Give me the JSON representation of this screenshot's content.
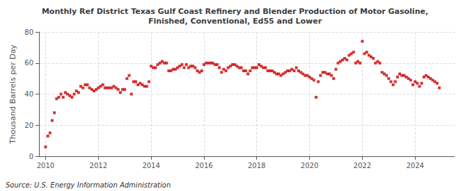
{
  "chart_data": {
    "type": "scatter",
    "title": "Monthly Ref District Texas Gulf Coast Refinery and Blender Production of Motor Gasoline,\nFinished, Conventional, Ed55 and Lower",
    "ylabel": "Thousand Barrels per Day",
    "annotations": [
      "Source: U.S. Energy Information Administration"
    ],
    "color": "#cc0000",
    "marker": "square",
    "grid": true,
    "xlim": [
      2009.75,
      2025.5
    ],
    "xticks": [
      2010,
      2012,
      2014,
      2016,
      2018,
      2020,
      2022,
      2024
    ],
    "ylim": [
      0,
      80
    ],
    "yticks": [
      0,
      20,
      40,
      60,
      80
    ],
    "x": [
      2010,
      2010.0833333333333,
      2010.1666666666667,
      2010.25,
      2010.3333333333333,
      2010.4166666666667,
      2010.5,
      2010.5833333333333,
      2010.6666666666667,
      2010.75,
      2010.8333333333333,
      2010.9166666666667,
      2011,
      2011.0833333333333,
      2011.1666666666667,
      2011.25,
      2011.3333333333333,
      2011.4166666666667,
      2011.5,
      2011.5833333333333,
      2011.6666666666667,
      2011.75,
      2011.8333333333333,
      2011.9166666666667,
      2012,
      2012.0833333333333,
      2012.1666666666667,
      2012.25,
      2012.3333333333333,
      2012.4166666666667,
      2012.5,
      2012.5833333333333,
      2012.6666666666667,
      2012.75,
      2012.8333333333333,
      2012.9166666666667,
      2013,
      2013.0833333333333,
      2013.1666666666667,
      2013.25,
      2013.3333333333333,
      2013.4166666666667,
      2013.5,
      2013.5833333333333,
      2013.6666666666667,
      2013.75,
      2013.8333333333333,
      2013.9166666666667,
      2014,
      2014.0833333333333,
      2014.1666666666667,
      2014.25,
      2014.3333333333333,
      2014.4166666666667,
      2014.5,
      2014.5833333333333,
      2014.6666666666667,
      2014.75,
      2014.8333333333333,
      2014.9166666666667,
      2015,
      2015.0833333333333,
      2015.1666666666667,
      2015.25,
      2015.3333333333333,
      2015.4166666666667,
      2015.5,
      2015.5833333333333,
      2015.6666666666667,
      2015.75,
      2015.8333333333333,
      2015.9166666666667,
      2016,
      2016.0833333333333,
      2016.1666666666667,
      2016.25,
      2016.3333333333333,
      2016.4166666666667,
      2016.5,
      2016.5833333333333,
      2016.6666666666667,
      2016.75,
      2016.8333333333333,
      2016.9166666666667,
      2017,
      2017.0833333333333,
      2017.1666666666667,
      2017.25,
      2017.3333333333333,
      2017.4166666666667,
      2017.5,
      2017.5833333333333,
      2017.6666666666667,
      2017.75,
      2017.8333333333333,
      2017.9166666666667,
      2018,
      2018.0833333333333,
      2018.1666666666667,
      2018.25,
      2018.3333333333333,
      2018.4166666666667,
      2018.5,
      2018.5833333333333,
      2018.6666666666667,
      2018.75,
      2018.8333333333333,
      2018.9166666666667,
      2019,
      2019.0833333333333,
      2019.1666666666667,
      2019.25,
      2019.3333333333333,
      2019.4166666666667,
      2019.5,
      2019.5833333333333,
      2019.6666666666667,
      2019.75,
      2019.8333333333333,
      2019.9166666666667,
      2020,
      2020.0833333333333,
      2020.1666666666667,
      2020.25,
      2020.3333333333333,
      2020.4166666666667,
      2020.5,
      2020.5833333333333,
      2020.6666666666667,
      2020.75,
      2020.8333333333333,
      2020.9166666666667,
      2021,
      2021.0833333333333,
      2021.1666666666667,
      2021.25,
      2021.3333333333333,
      2021.4166666666667,
      2021.5,
      2021.5833333333333,
      2021.6666666666667,
      2021.75,
      2021.8333333333333,
      2021.9166666666667,
      2022,
      2022.0833333333333,
      2022.1666666666667,
      2022.25,
      2022.3333333333333,
      2022.4166666666667,
      2022.5,
      2022.5833333333333,
      2022.6666666666667,
      2022.75,
      2022.8333333333333,
      2022.9166666666667,
      2023,
      2023.0833333333333,
      2023.1666666666667,
      2023.25,
      2023.3333333333333,
      2023.4166666666667,
      2023.5,
      2023.5833333333333,
      2023.6666666666667,
      2023.75,
      2023.8333333333333,
      2023.9166666666667,
      2024,
      2024.0833333333333,
      2024.1666666666667,
      2024.25,
      2024.3333333333333,
      2024.4166666666667,
      2024.5,
      2024.5833333333333,
      2024.6666666666667,
      2024.75,
      2024.8333333333333,
      2024.9166666666667
    ],
    "values": [
      6,
      13,
      15,
      23,
      28,
      37,
      38,
      40,
      38,
      41,
      40,
      39,
      38,
      40,
      42,
      41,
      45,
      44,
      46,
      46,
      44,
      43,
      42,
      43,
      44,
      45,
      46,
      44,
      44,
      44,
      44,
      45,
      44,
      43,
      41,
      43,
      43,
      50,
      52,
      40,
      48,
      48,
      46,
      47,
      46,
      45,
      45,
      48,
      58,
      57,
      57,
      59,
      60,
      61,
      60,
      60,
      55,
      55,
      56,
      56,
      57,
      58,
      59,
      57,
      59,
      57,
      58,
      58,
      57,
      55,
      54,
      55,
      59,
      60,
      60,
      60,
      60,
      59,
      59,
      57,
      54,
      56,
      55,
      57,
      58,
      59,
      59,
      58,
      57,
      57,
      55,
      55,
      53,
      55,
      57,
      57,
      57,
      59,
      58,
      57,
      57,
      55,
      55,
      55,
      54,
      53,
      53,
      52,
      53,
      54,
      55,
      55,
      56,
      55,
      57,
      55,
      54,
      53,
      52,
      52,
      51,
      50,
      49,
      38,
      48,
      52,
      54,
      54,
      53,
      53,
      52,
      50,
      56,
      60,
      61,
      62,
      63,
      62,
      65,
      66,
      67,
      60,
      61,
      60,
      74,
      66,
      67,
      65,
      64,
      63,
      60,
      61,
      60,
      54,
      53,
      52,
      50,
      48,
      46,
      48,
      51,
      53,
      52,
      52,
      51,
      50,
      49,
      46,
      48,
      47,
      45,
      47,
      51,
      52,
      51,
      50,
      49,
      48,
      47,
      44
    ]
  }
}
